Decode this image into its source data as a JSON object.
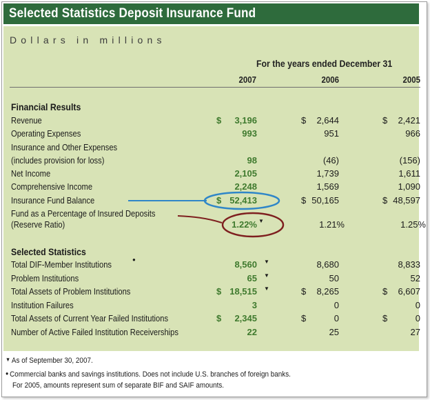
{
  "title": "Selected Statistics Deposit Insurance Fund",
  "subtitle": "Dollars in millions",
  "period_header": "For the years ended December 31",
  "years": [
    "2007",
    "2006",
    "2005"
  ],
  "currency_symbol": "$",
  "sections": {
    "financial": {
      "heading": "Financial Results",
      "rows": [
        {
          "label": "Revenue",
          "v2007": "3,196",
          "v2006": "2,644",
          "v2005": "2,421"
        },
        {
          "label": "Operating Expenses",
          "v2007": "993",
          "v2006": "951",
          "v2005": "966"
        },
        {
          "label": "Insurance and Other Expenses",
          "label2": "(includes provision for loss)",
          "v2007": "98",
          "v2006": "(46)",
          "v2005": "(156)"
        },
        {
          "label": "Net Income",
          "v2007": "2,105",
          "v2006": "1,739",
          "v2005": "1,611"
        },
        {
          "label": "Comprehensive Income",
          "v2007": "2,248",
          "v2006": "1,569",
          "v2005": "1,090"
        },
        {
          "label": "Insurance Fund Balance",
          "v2007": "52,413",
          "v2006": "50,165",
          "v2005": "48,597"
        },
        {
          "label": "Fund as a Percentage of Insured Deposits",
          "label2": "(Reserve Ratio)",
          "v2007": "1.22%",
          "v2006": "1.21%",
          "v2005": "1.25%"
        }
      ]
    },
    "selected": {
      "heading": "Selected Statistics",
      "rows": [
        {
          "label": "Total DIF-Member Institutions",
          "v2007": "8,560",
          "v2006": "8,680",
          "v2005": "8,833"
        },
        {
          "label": "Problem Institutions",
          "v2007": "65",
          "v2006": "50",
          "v2005": "52"
        },
        {
          "label": "Total Assets of Problem Institutions",
          "v2007": "18,515",
          "v2006": "8,265",
          "v2005": "6,607"
        },
        {
          "label": "Institution Failures",
          "v2007": "3",
          "v2006": "0",
          "v2005": "0"
        },
        {
          "label": "Total Assets of Current Year Failed Institutions",
          "v2007": "2,345",
          "v2006": "0",
          "v2005": "0"
        },
        {
          "label": "Number of Active Failed Institution Receiverships",
          "v2007": "22",
          "v2006": "25",
          "v2005": "27"
        }
      ]
    }
  },
  "footnotes": {
    "note1": "As of September 30, 2007.",
    "note2_line1": "Commercial banks and savings institutions. Does not include U.S. branches of foreign banks.",
    "note2_line2": "For 2005, amounts represent sum of separate BIF and SAIF amounts."
  },
  "marks": {
    "triangle": "▼",
    "bullet": "●"
  },
  "colors": {
    "title_bar": "#2e6b3c",
    "panel": "#d8e3b6",
    "value_2007": "#3f7a2e",
    "annotation_blue": "#2f86c8",
    "annotation_red": "#7e1f1f"
  }
}
